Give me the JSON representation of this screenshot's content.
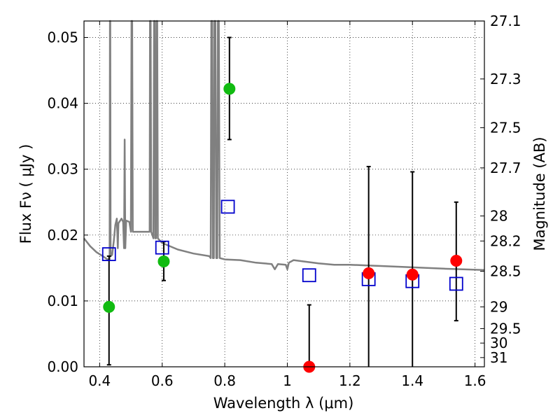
{
  "chart_data": {
    "type": "scatter",
    "title": "",
    "xlabel": "Wavelength  λ (μm)",
    "ylabel": "Flux  Fν  ( μJy )",
    "y2label": "Magnitude (AB)",
    "xlim": [
      0.35,
      1.63
    ],
    "ylim": [
      0.0,
      0.0525
    ],
    "grid": true,
    "x_ticks": [
      0.4,
      0.6,
      0.8,
      1.0,
      1.2,
      1.4,
      1.6
    ],
    "x_tick_labels": [
      "0.4",
      "0.6",
      "0.8",
      "1",
      "1.2",
      "1.4",
      "1.6"
    ],
    "y_ticks": [
      0.0,
      0.01,
      0.02,
      0.03,
      0.04,
      0.05
    ],
    "y_tick_labels": [
      "0.00",
      "0.01",
      "0.02",
      "0.03",
      "0.04",
      "0.05"
    ],
    "y2_ticks": [
      {
        "label": "27.1",
        "flux": 0.0525
      },
      {
        "label": "27.3",
        "flux": 0.0437
      },
      {
        "label": "27.5",
        "flux": 0.0363
      },
      {
        "label": "27.7",
        "flux": 0.0302
      },
      {
        "label": "28",
        "flux": 0.0229
      },
      {
        "label": "28.2",
        "flux": 0.0191
      },
      {
        "label": "28.5",
        "flux": 0.0145
      },
      {
        "label": "29",
        "flux": 0.0091
      },
      {
        "label": "29.5",
        "flux": 0.0058
      },
      {
        "label": "30",
        "flux": 0.0036
      },
      {
        "label": "31",
        "flux": 0.0014
      }
    ],
    "series": [
      {
        "kind": "model-spectrum",
        "color": "#808080",
        "points": [
          [
            0.35,
            0.0195
          ],
          [
            0.37,
            0.0183
          ],
          [
            0.39,
            0.0174
          ],
          [
            0.41,
            0.0168
          ],
          [
            0.425,
            0.0163
          ],
          [
            0.432,
            0.0163
          ],
          [
            0.433,
            0.0525
          ],
          [
            0.434,
            0.0525
          ],
          [
            0.435,
            0.0168
          ],
          [
            0.44,
            0.017
          ],
          [
            0.445,
            0.019
          ],
          [
            0.45,
            0.0215
          ],
          [
            0.455,
            0.0225
          ],
          [
            0.458,
            0.018
          ],
          [
            0.46,
            0.0218
          ],
          [
            0.47,
            0.0225
          ],
          [
            0.475,
            0.022
          ],
          [
            0.478,
            0.018
          ],
          [
            0.48,
            0.0345
          ],
          [
            0.482,
            0.018
          ],
          [
            0.485,
            0.0222
          ],
          [
            0.495,
            0.022
          ],
          [
            0.5,
            0.0205
          ],
          [
            0.502,
            0.0525
          ],
          [
            0.504,
            0.0525
          ],
          [
            0.506,
            0.0205
          ],
          [
            0.52,
            0.0205
          ],
          [
            0.54,
            0.0205
          ],
          [
            0.555,
            0.0205
          ],
          [
            0.56,
            0.0205
          ],
          [
            0.561,
            0.0525
          ],
          [
            0.563,
            0.0525
          ],
          [
            0.565,
            0.0205
          ],
          [
            0.572,
            0.0195
          ],
          [
            0.574,
            0.0525
          ],
          [
            0.576,
            0.0525
          ],
          [
            0.578,
            0.0195
          ],
          [
            0.58,
            0.0195
          ],
          [
            0.582,
            0.0525
          ],
          [
            0.584,
            0.0525
          ],
          [
            0.586,
            0.0195
          ],
          [
            0.6,
            0.0188
          ],
          [
            0.62,
            0.0184
          ],
          [
            0.65,
            0.0178
          ],
          [
            0.7,
            0.0172
          ],
          [
            0.75,
            0.0168
          ],
          [
            0.755,
            0.0165
          ],
          [
            0.757,
            0.0525
          ],
          [
            0.76,
            0.0525
          ],
          [
            0.762,
            0.0165
          ],
          [
            0.765,
            0.0165
          ],
          [
            0.767,
            0.0525
          ],
          [
            0.77,
            0.0525
          ],
          [
            0.773,
            0.0165
          ],
          [
            0.776,
            0.0165
          ],
          [
            0.778,
            0.0525
          ],
          [
            0.781,
            0.0525
          ],
          [
            0.784,
            0.0165
          ],
          [
            0.8,
            0.0163
          ],
          [
            0.85,
            0.0162
          ],
          [
            0.9,
            0.0158
          ],
          [
            0.95,
            0.0156
          ],
          [
            0.96,
            0.0148
          ],
          [
            0.97,
            0.0156
          ],
          [
            0.995,
            0.0155
          ],
          [
            1.0,
            0.0148
          ],
          [
            1.005,
            0.0158
          ],
          [
            1.02,
            0.0162
          ],
          [
            1.05,
            0.016
          ],
          [
            1.1,
            0.0157
          ],
          [
            1.15,
            0.0155
          ],
          [
            1.2,
            0.0155
          ],
          [
            1.25,
            0.0154
          ],
          [
            1.3,
            0.0153
          ],
          [
            1.4,
            0.0151
          ],
          [
            1.5,
            0.0149
          ],
          [
            1.63,
            0.0147
          ]
        ]
      },
      {
        "kind": "model-photometry",
        "marker": "open-square",
        "color": "#0000cc",
        "points": [
          [
            0.43,
            0.0171
          ],
          [
            0.6,
            0.0181
          ],
          [
            0.81,
            0.0243
          ],
          [
            1.07,
            0.0139
          ],
          [
            1.26,
            0.0133
          ],
          [
            1.4,
            0.013
          ],
          [
            1.54,
            0.0126
          ]
        ]
      },
      {
        "kind": "observed-green",
        "marker": "filled-circle",
        "color": "#11bb11",
        "points": [
          {
            "x": 0.43,
            "y": 0.0091,
            "err_low": 0.0003,
            "err_high": 0.0168
          },
          {
            "x": 0.605,
            "y": 0.016,
            "err_low": 0.0131,
            "err_high": 0.019
          },
          {
            "x": 0.815,
            "y": 0.0422,
            "err_low": 0.0345,
            "err_high": 0.05
          }
        ]
      },
      {
        "kind": "observed-red",
        "marker": "filled-circle",
        "color": "#ff0000",
        "points": [
          {
            "x": 1.07,
            "y": 0.0,
            "err_low": 0.0,
            "err_high": 0.0094
          },
          {
            "x": 1.26,
            "y": 0.0142,
            "err_low": 0.0,
            "err_high": 0.0304
          },
          {
            "x": 1.4,
            "y": 0.014,
            "err_low": 0.0,
            "err_high": 0.0296
          },
          {
            "x": 1.54,
            "y": 0.0161,
            "err_low": 0.007,
            "err_high": 0.025
          }
        ]
      }
    ]
  }
}
